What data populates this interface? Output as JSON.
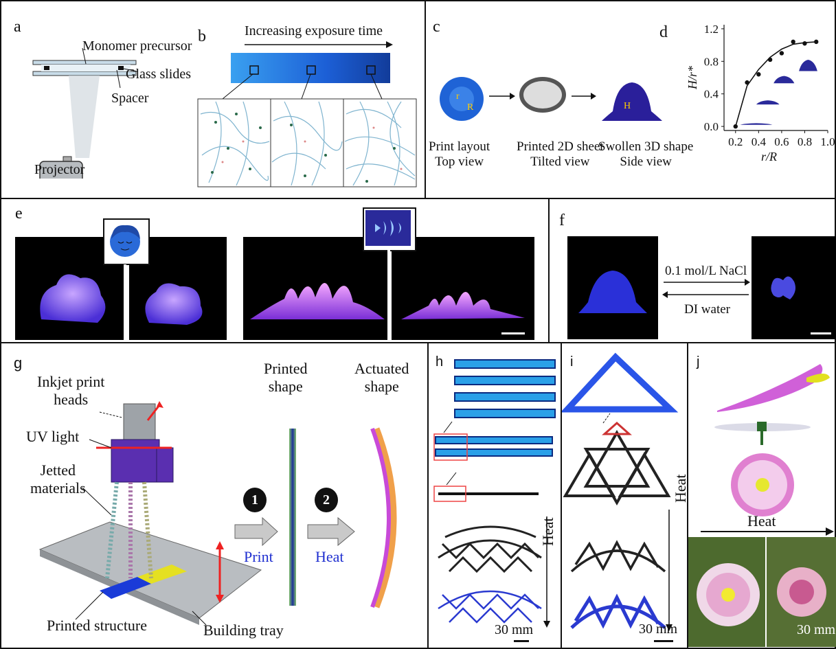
{
  "panels": {
    "a": {
      "letter": "a",
      "monomer": "Monomer precursor",
      "glass": "Glass slides",
      "spacer": "Spacer",
      "projector": "Projector"
    },
    "b": {
      "letter": "b",
      "exposure": "Increasing exposure time"
    },
    "c": {
      "letter": "c",
      "captions": [
        {
          "line1": "Print layout",
          "line2": "Top view"
        },
        {
          "line1": "Printed 2D sheet",
          "line2": "Tilted view"
        },
        {
          "line1": "Swollen 3D shape",
          "line2": "Side view"
        }
      ],
      "labels": {
        "r": "r",
        "R": "R",
        "H": "H"
      }
    },
    "d": {
      "letter": "d"
    },
    "e": {
      "letter": "e"
    },
    "f": {
      "letter": "f",
      "forward": "0.1 mol/L NaCl",
      "backward": "DI water"
    },
    "g": {
      "letter": "g",
      "inkjet_line1": "Inkjet print",
      "inkjet_line2": "heads",
      "uv": "UV light",
      "jetted_line1": "Jetted",
      "jetted_line2": "materials",
      "printed_structure": "Printed structure",
      "building_tray": "Building tray",
      "printed_line1": "Printed",
      "printed_line2": "shape",
      "actuated_line1": "Actuated",
      "actuated_line2": "shape",
      "step1_num": "1",
      "step1": "Print",
      "step2_num": "2",
      "step2": "Heat"
    },
    "h": {
      "letter": "h",
      "heat": "Heat",
      "scale": "30 mm"
    },
    "i": {
      "letter": "i",
      "heat": "Heat",
      "scale": "30 mm"
    },
    "j": {
      "letter": "j",
      "heat": "Heat",
      "scale": "30 mm"
    }
  },
  "chart_data": {
    "type": "scatter",
    "xlabel": "r/R",
    "ylabel": "H/r*",
    "x_ticks": [
      "0.2",
      "0.4",
      "0.6",
      "0.8",
      "1.0"
    ],
    "y_ticks": [
      "0.0",
      "0.4",
      "0.8",
      "1.2"
    ],
    "xlim": [
      0.1,
      1.0
    ],
    "ylim": [
      -0.05,
      1.25
    ],
    "series": [
      {
        "points": [
          [
            0.2,
            0.0
          ],
          [
            0.3,
            0.54
          ],
          [
            0.4,
            0.64
          ],
          [
            0.5,
            0.82
          ],
          [
            0.6,
            0.9
          ],
          [
            0.7,
            1.04
          ],
          [
            0.8,
            1.02
          ],
          [
            0.9,
            1.04
          ]
        ]
      }
    ],
    "fit_curve": [
      [
        0.2,
        0.0
      ],
      [
        0.3,
        0.5
      ],
      [
        0.4,
        0.7
      ],
      [
        0.5,
        0.85
      ],
      [
        0.6,
        0.95
      ],
      [
        0.7,
        1.01
      ],
      [
        0.8,
        1.03
      ],
      [
        0.9,
        1.04
      ]
    ],
    "colors": {
      "points": "#111111",
      "line": "#111111",
      "insets": "#2a2a9a"
    }
  }
}
